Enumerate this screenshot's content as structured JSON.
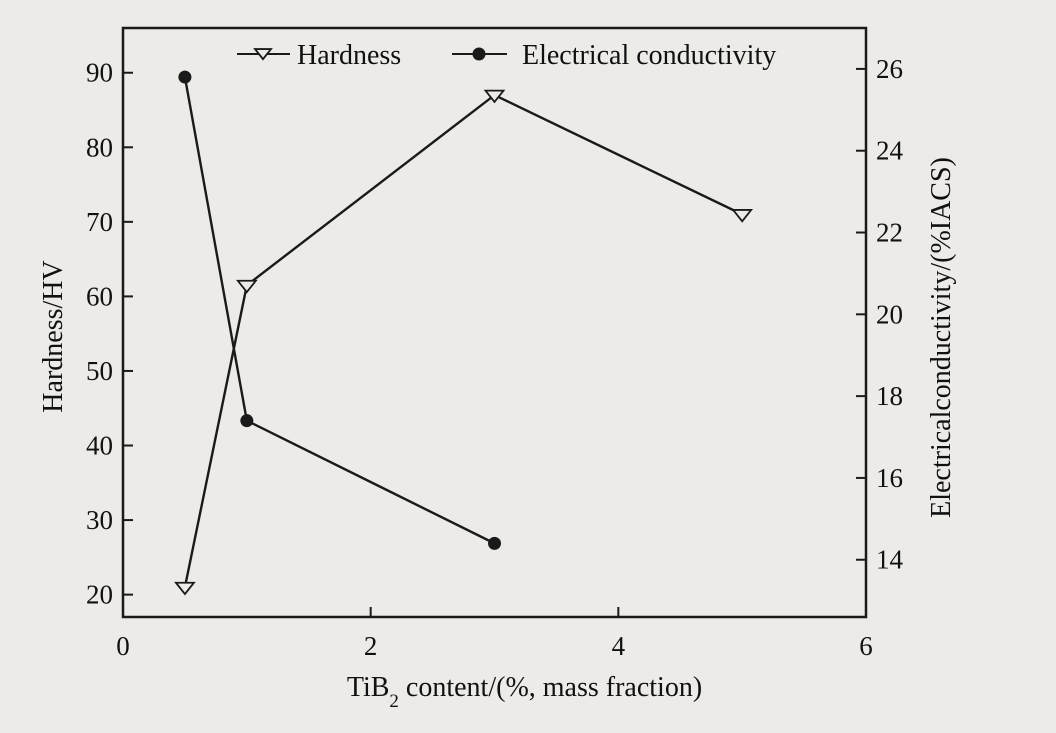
{
  "chart_data": {
    "type": "line",
    "xlabel": "TiB2 content/(%, mass fraction)",
    "xlabel_main": "TiB",
    "xlabel_sub": "2",
    "xlabel_rest": " content/(%, mass fraction)",
    "ylabel_left": "Hardness/HV",
    "ylabel_right": "Electricalconductivity/(%IACS)",
    "xlim": [
      0,
      6
    ],
    "ylim_left": [
      17,
      96
    ],
    "ylim_right": [
      12.6,
      27
    ],
    "x_ticks": [
      0,
      2,
      4,
      6
    ],
    "x_tick_labels": [
      "0",
      "2",
      "4",
      "6"
    ],
    "y_left_ticks": [
      20,
      30,
      40,
      50,
      60,
      70,
      80,
      90
    ],
    "y_left_tick_labels": [
      "20",
      "30",
      "40",
      "50",
      "60",
      "70",
      "80",
      "90"
    ],
    "y_right_ticks": [
      14,
      16,
      18,
      20,
      22,
      24,
      26
    ],
    "y_right_tick_labels": [
      "14",
      "16",
      "18",
      "20",
      "22",
      "24",
      "26"
    ],
    "grid": false,
    "legend_position": "top",
    "series": [
      {
        "name": "Hardness",
        "axis": "left",
        "marker": "triangle-down-open",
        "color": "#1a1a1a",
        "x": [
          0.5,
          1,
          3,
          5
        ],
        "y": [
          21,
          61.5,
          87,
          71
        ]
      },
      {
        "name": "Electrical conductivity",
        "axis": "right",
        "marker": "circle-filled",
        "color": "#1a1a1a",
        "x": [
          0.5,
          1,
          3
        ],
        "y": [
          25.8,
          17.4,
          14.4
        ]
      }
    ]
  }
}
